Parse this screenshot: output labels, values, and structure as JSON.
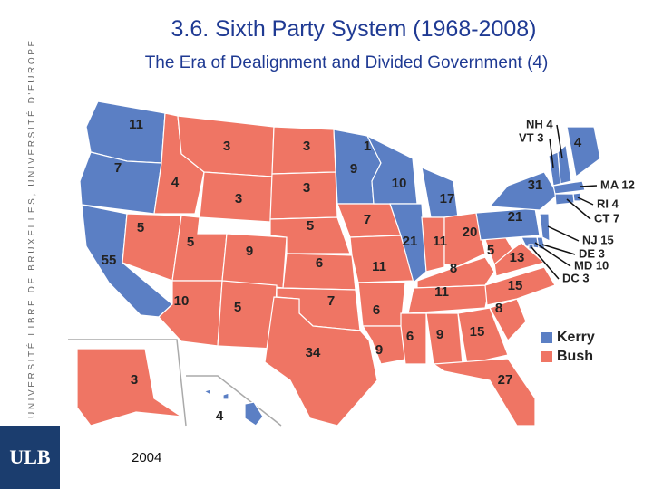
{
  "header": {
    "title": "3.6. Sixth Party System (1968-2008)",
    "subtitle": "The Era of Dealignment and Divided Government (4)"
  },
  "sidebar": {
    "text": "UNIVERSITÉ LIBRE DE BRUXELLES, UNIVERSITÉ D'EUROPE",
    "logo": "ULB"
  },
  "map": {
    "year": "2004",
    "legend": [
      {
        "name": "Kerry",
        "color": "#5b7fc4"
      },
      {
        "name": "Bush",
        "color": "#ef7564"
      }
    ],
    "states": [
      {
        "label": "11",
        "color": "#5b7fc4"
      },
      {
        "label": "7",
        "color": "#5b7fc4"
      },
      {
        "label": "55",
        "color": "#5b7fc4"
      },
      {
        "label": "4",
        "color": "#ef7564"
      },
      {
        "label": "5",
        "color": "#ef7564"
      },
      {
        "label": "3",
        "color": "#ef7564"
      },
      {
        "label": "3",
        "color": "#ef7564"
      },
      {
        "label": "5",
        "color": "#ef7564"
      },
      {
        "label": "10",
        "color": "#ef7564"
      },
      {
        "label": "9",
        "color": "#ef7564"
      },
      {
        "label": "5",
        "color": "#ef7564"
      },
      {
        "label": "3",
        "color": "#ef7564"
      },
      {
        "label": "3",
        "color": "#ef7564"
      },
      {
        "label": "5",
        "color": "#ef7564"
      },
      {
        "label": "6",
        "color": "#ef7564"
      },
      {
        "label": "7",
        "color": "#ef7564"
      },
      {
        "label": "34",
        "color": "#ef7564"
      },
      {
        "label": "9",
        "color": "#5b7fc4"
      },
      {
        "label": "7",
        "color": "#ef7564"
      },
      {
        "label": "11",
        "color": "#ef7564"
      },
      {
        "label": "6",
        "color": "#ef7564"
      },
      {
        "label": "9",
        "color": "#ef7564"
      },
      {
        "label": "10",
        "color": "#5b7fc4"
      },
      {
        "label": "21",
        "color": "#5b7fc4"
      },
      {
        "label": "17",
        "color": "#5b7fc4"
      },
      {
        "label": "11",
        "color": "#ef7564"
      },
      {
        "label": "20",
        "color": "#ef7564"
      },
      {
        "label": "8",
        "color": "#ef7564"
      },
      {
        "label": "11",
        "color": "#ef7564"
      },
      {
        "label": "6",
        "color": "#ef7564"
      },
      {
        "label": "9",
        "color": "#ef7564"
      },
      {
        "label": "15",
        "color": "#ef7564"
      },
      {
        "label": "27",
        "color": "#ef7564"
      },
      {
        "label": "8",
        "color": "#ef7564"
      },
      {
        "label": "15",
        "color": "#ef7564"
      },
      {
        "label": "13",
        "color": "#ef7564"
      },
      {
        "label": "5",
        "color": "#ef7564"
      },
      {
        "label": "21",
        "color": "#5b7fc4"
      },
      {
        "label": "31",
        "color": "#5b7fc4"
      },
      {
        "label": "4",
        "color": "#5b7fc4"
      },
      {
        "label": "NH 4",
        "color": "#5b7fc4"
      },
      {
        "label": "VT 3",
        "color": "#5b7fc4"
      },
      {
        "label": "MA 12",
        "color": "#5b7fc4"
      },
      {
        "label": "RI 4",
        "color": "#5b7fc4"
      },
      {
        "label": "CT 7",
        "color": "#5b7fc4"
      },
      {
        "label": "NJ 15",
        "color": "#5b7fc4"
      },
      {
        "label": "DE 3",
        "color": "#5b7fc4"
      },
      {
        "label": "MD 10",
        "color": "#5b7fc4"
      },
      {
        "label": "DC 3",
        "color": "#5b7fc4"
      },
      {
        "label": "3",
        "color": "#ef7564"
      },
      {
        "label": "4",
        "color": "#5b7fc4"
      },
      {
        "label": "1",
        "color": "#5b7fc4"
      }
    ]
  }
}
